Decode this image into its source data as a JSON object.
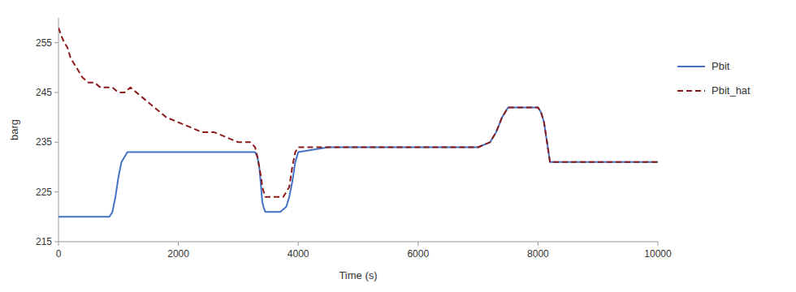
{
  "chart_data": {
    "type": "line",
    "xlabel": "Time (s)",
    "ylabel": "barg",
    "xlim": [
      0,
      10000
    ],
    "ylim": [
      215,
      260
    ],
    "xticks": [
      0,
      2000,
      4000,
      6000,
      8000,
      10000
    ],
    "yticks": [
      215,
      225,
      235,
      245,
      255
    ],
    "grid": false,
    "legend": "right",
    "series": [
      {
        "name": "Pbit",
        "color": "#4472C4",
        "line_style": "solid",
        "x": [
          0,
          50,
          200,
          800,
          850,
          900,
          950,
          1000,
          1050,
          1100,
          1150,
          1200,
          2000,
          2800,
          3100,
          3200,
          3280,
          3320,
          3350,
          3380,
          3400,
          3420,
          3450,
          3500,
          3550,
          3600,
          3700,
          3800,
          3850,
          3900,
          3950,
          4000,
          4500,
          5000,
          5500,
          6000,
          6500,
          6600,
          6700,
          7000,
          7200,
          7300,
          7400,
          7500,
          7600,
          7700,
          7800,
          7900,
          8000,
          8050,
          8100,
          8200,
          8300,
          8500,
          9000,
          9500,
          10000
        ],
        "values": [
          220,
          220,
          220,
          220,
          220,
          221,
          224,
          228,
          231,
          232,
          233,
          233,
          233,
          233,
          233,
          233,
          233,
          232,
          230,
          226,
          223,
          222,
          221,
          221,
          221,
          221,
          221,
          222,
          224,
          227,
          231,
          233,
          234,
          234,
          234,
          234,
          234,
          234,
          234,
          234,
          235,
          237,
          240,
          242,
          242,
          242,
          242,
          242,
          242,
          241,
          239,
          231,
          231,
          231,
          231,
          231,
          231
        ]
      },
      {
        "name": "Pbit_hat",
        "color": "#8B1A1A",
        "line_style": "dashed",
        "x": [
          0,
          30,
          60,
          100,
          150,
          200,
          300,
          400,
          500,
          600,
          700,
          800,
          900,
          1000,
          1100,
          1200,
          1400,
          1600,
          1800,
          2000,
          2200,
          2400,
          2600,
          2800,
          3000,
          3100,
          3200,
          3280,
          3320,
          3350,
          3380,
          3400,
          3450,
          3500,
          3550,
          3600,
          3650,
          3700,
          3750,
          3800,
          3850,
          3900,
          3950,
          4000,
          4200,
          4500,
          5000,
          5500,
          6000,
          6500,
          6600,
          6700,
          7000,
          7200,
          7300,
          7400,
          7500,
          7600,
          7700,
          7800,
          7900,
          8000,
          8050,
          8100,
          8200,
          8300,
          8500,
          9000,
          9500,
          10000
        ],
        "values": [
          258,
          257,
          256,
          255,
          254,
          252,
          250,
          248,
          247,
          247,
          246,
          246,
          246,
          245,
          245,
          246,
          244,
          242,
          240,
          239,
          238,
          237,
          237,
          236,
          235,
          235,
          235,
          234,
          232,
          230,
          228,
          226,
          224,
          224,
          224,
          224,
          224,
          224,
          224,
          225,
          226,
          230,
          233,
          234,
          234,
          234,
          234,
          234,
          234,
          234,
          234,
          234,
          234,
          235,
          237,
          240,
          242,
          242,
          242,
          242,
          242,
          242,
          241,
          239,
          231,
          231,
          231,
          231,
          231,
          231
        ]
      }
    ]
  }
}
